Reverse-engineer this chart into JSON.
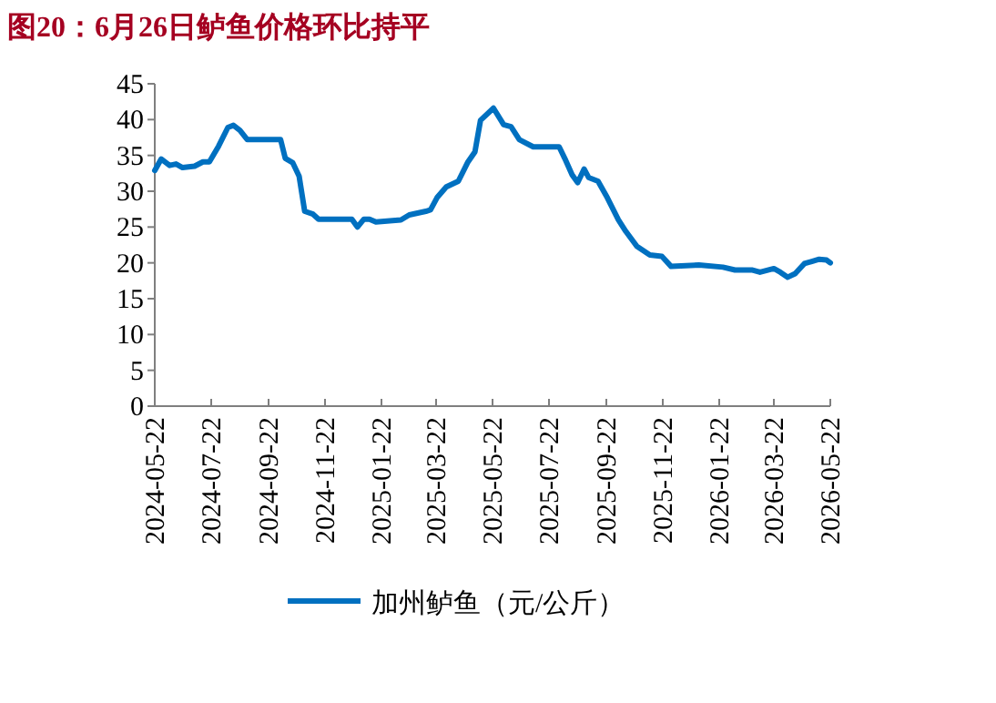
{
  "chart_data": {
    "type": "line",
    "title": "图20：6月26日鲈鱼价格环比持平",
    "x": [
      "2024-05-22",
      "2024-05-29",
      "2024-06-07",
      "2024-06-14",
      "2024-06-21",
      "2024-07-04",
      "2024-07-13",
      "2024-07-20",
      "2024-07-30",
      "2024-08-09",
      "2024-08-15",
      "2024-08-22",
      "2024-08-30",
      "2024-09-11",
      "2024-10-05",
      "2024-10-10",
      "2024-10-18",
      "2024-10-25",
      "2024-10-31",
      "2024-11-09",
      "2024-11-15",
      "2024-12-21",
      "2024-12-27",
      "2025-01-03",
      "2025-01-09",
      "2025-01-16",
      "2025-02-12",
      "2025-02-21",
      "2025-03-11",
      "2025-03-16",
      "2025-03-23",
      "2025-04-02",
      "2025-04-15",
      "2025-04-25",
      "2025-05-03",
      "2025-05-09",
      "2025-05-23",
      "2025-06-03",
      "2025-06-11",
      "2025-06-20",
      "2025-07-05",
      "2025-08-02",
      "2025-08-08",
      "2025-08-16",
      "2025-08-22",
      "2025-08-29",
      "2025-09-03",
      "2025-09-13",
      "2025-09-23",
      "2025-10-05",
      "2025-10-13",
      "2025-10-25",
      "2025-11-08",
      "2025-11-21",
      "2025-12-01",
      "2025-12-31",
      "2026-01-26",
      "2026-02-08",
      "2026-02-27",
      "2026-03-07",
      "2026-03-22",
      "2026-03-29",
      "2026-04-06",
      "2026-04-14",
      "2026-04-24",
      "2026-05-02",
      "2026-05-10",
      "2026-05-18",
      "2026-05-22"
    ],
    "series": [
      {
        "name": "加州鲈鱼（元/公斤）",
        "color": "#0070c0",
        "values": [
          32.9,
          34.5,
          33.6,
          33.8,
          33.3,
          33.5,
          34.1,
          34.1,
          36.3,
          38.9,
          39.2,
          38.5,
          37.2,
          37.2,
          37.2,
          34.6,
          34.0,
          32.1,
          27.2,
          26.8,
          26.1,
          26.1,
          25.0,
          26.1,
          26.1,
          25.7,
          26.0,
          26.7,
          27.2,
          27.4,
          29.1,
          30.6,
          31.4,
          34.0,
          35.5,
          39.9,
          41.6,
          39.3,
          39.0,
          37.2,
          36.2,
          36.2,
          34.6,
          32.3,
          31.2,
          33.1,
          31.9,
          31.4,
          29.1,
          26.0,
          24.4,
          22.3,
          21.1,
          20.9,
          19.5,
          19.7,
          19.4,
          19.0,
          19.0,
          18.7,
          19.2,
          18.7,
          18.0,
          18.5,
          19.9,
          20.2,
          20.5,
          20.4,
          20.0
        ]
      }
    ],
    "xlim": [
      "2024-05-22",
      "2026-05-22"
    ],
    "xticks": [
      "2024-05-22",
      "2024-07-22",
      "2024-09-22",
      "2024-11-22",
      "2025-01-22",
      "2025-03-22",
      "2025-05-22",
      "2025-07-22",
      "2025-09-22",
      "2025-11-22",
      "2026-01-22",
      "2026-03-22",
      "2026-05-22"
    ],
    "ylim": [
      0,
      45
    ],
    "yticks": [
      0,
      5,
      10,
      15,
      20,
      25,
      30,
      35,
      40,
      45
    ],
    "grid": false,
    "legend": "bottom",
    "marker": "none",
    "line_style": "solid"
  }
}
